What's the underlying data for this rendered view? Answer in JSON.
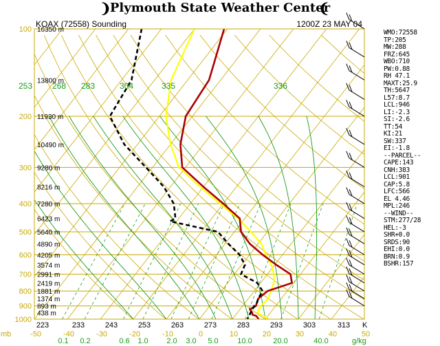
{
  "header": {
    "title": "Plymouth State Weather Center",
    "left_ornament": "❩",
    "right_ornament": "❨"
  },
  "chart_data": {
    "type": "line",
    "title": "KOAX (72558) Sounding",
    "valid_time": "1200Z 23 MAY 04",
    "pressure_axis": {
      "scale": "log",
      "range_hpa": [
        1000,
        100
      ],
      "ticks": [
        "1000",
        "900",
        "800",
        "700",
        "600",
        "500",
        "400",
        "300",
        "200",
        "100"
      ]
    },
    "temperature_axis": {
      "range_c": [
        -50,
        50
      ],
      "ticks_c": [
        "-50",
        "-40",
        "-30",
        "-20",
        "-10",
        "0",
        "10",
        "20",
        "30",
        "40",
        "50"
      ],
      "ticks_k": [
        "223",
        "233",
        "243",
        "253",
        "263",
        "273",
        "283",
        "293",
        "303",
        "313"
      ],
      "unit_c": "°C",
      "unit_k": "K",
      "mb_label": "mb"
    },
    "mixing_ratio_labels": [
      "0.1",
      "0.2",
      "0.6",
      "1.0",
      "2.0",
      "3.0",
      "5.0",
      "10.0",
      "20.0",
      "40.0"
    ],
    "mixing_ratio_unit": "g/kg",
    "theta_labels": [
      "253",
      "268",
      "283",
      "304",
      "335",
      "336"
    ],
    "height_labels": [
      "16350 m",
      "13800 m",
      "11930 m",
      "10490 m",
      "9280 m",
      "8216 m",
      "7280 m",
      "6423 m",
      "5640 m",
      "4890 m",
      "4205 m",
      "3574 m",
      "2991 m",
      "2419 m",
      "1881 m",
      "1374 m",
      "893 m",
      "438 m"
    ],
    "height_levels_hpa": [
      100,
      150,
      200,
      250,
      300,
      350,
      400,
      450,
      500,
      550,
      600,
      650,
      700,
      750,
      800,
      850,
      900,
      950
    ],
    "series": [
      {
        "name": "Temperature",
        "color": "#aa0000",
        "points": [
          [
            100,
            -61
          ],
          [
            150,
            -53.5
          ],
          [
            200,
            -52
          ],
          [
            250,
            -47
          ],
          [
            300,
            -41
          ],
          [
            350,
            -30
          ],
          [
            400,
            -20
          ],
          [
            450,
            -11.5
          ],
          [
            500,
            -8
          ],
          [
            550,
            -2.5
          ],
          [
            600,
            4
          ],
          [
            650,
            10.5
          ],
          [
            700,
            17
          ],
          [
            750,
            19.5
          ],
          [
            800,
            14
          ],
          [
            850,
            13
          ],
          [
            875,
            13.5
          ],
          [
            900,
            14
          ],
          [
            925,
            13
          ],
          [
            950,
            14.5
          ],
          [
            965,
            15
          ],
          [
            975,
            16.5
          ],
          [
            1000,
            18
          ]
        ]
      },
      {
        "name": "Dewpoint",
        "color": "#000000",
        "points": [
          [
            100,
            -86
          ],
          [
            150,
            -77
          ],
          [
            200,
            -75
          ],
          [
            250,
            -64
          ],
          [
            300,
            -52
          ],
          [
            350,
            -42
          ],
          [
            400,
            -35
          ],
          [
            450,
            -31
          ],
          [
            460,
            -32
          ],
          [
            500,
            -15
          ],
          [
            550,
            -9
          ],
          [
            600,
            -3
          ],
          [
            650,
            1
          ],
          [
            700,
            2
          ],
          [
            750,
            9
          ],
          [
            800,
            12.5
          ],
          [
            850,
            13
          ],
          [
            875,
            13.5
          ],
          [
            900,
            13.5
          ],
          [
            950,
            14
          ],
          [
            1000,
            14.5
          ]
        ]
      },
      {
        "name": "Parcel",
        "color": "#ffff00",
        "points": [
          [
            100,
            -70
          ],
          [
            150,
            -65
          ],
          [
            200,
            -58
          ],
          [
            250,
            -50
          ],
          [
            300,
            -42
          ],
          [
            350,
            -31
          ],
          [
            400,
            -21
          ],
          [
            450,
            -12
          ],
          [
            500,
            -5
          ],
          [
            550,
            1
          ],
          [
            600,
            5
          ],
          [
            650,
            9
          ],
          [
            700,
            12
          ],
          [
            750,
            14
          ],
          [
            800,
            15
          ],
          [
            850,
            16
          ],
          [
            900,
            15.5
          ],
          [
            950,
            16
          ],
          [
            1000,
            21
          ]
        ]
      }
    ]
  },
  "stats": [
    "WMO:72558",
    "TP:205",
    "MW:288",
    "FRZ:645",
    "WBO:710",
    "PW:0.88",
    "RH 47.1",
    "MAXT:25.9",
    "TH:5647",
    "L57:8.7",
    "LCL:946",
    "LI:-2.3",
    "SI:-2.6",
    "TT:54",
    "KI:21",
    "SW:337",
    "EI:-1.8",
    "--PARCEL--",
    "CAPE:143",
    "CNH:383",
    "LCL:901",
    "CAP:5.8",
    "LFC:566",
    "EL 4.46",
    "MPL:246",
    "--WIND--",
    "STM:277/28",
    "HEL:-3",
    "SHR+0.0",
    "SRDS:90",
    "EHI:0.0",
    "BRN:0.9",
    "BSHR:157"
  ],
  "colors": {
    "isobar": "#c8a800",
    "isotherm": "#c8a800",
    "dry_adiabat": "#c8a800",
    "moist_adiabat": "#1a9a1a",
    "mixing_ratio": "#1a9a1a",
    "axis_text": "#c8a800",
    "green_text": "#1a9a1a",
    "black": "#000000"
  }
}
